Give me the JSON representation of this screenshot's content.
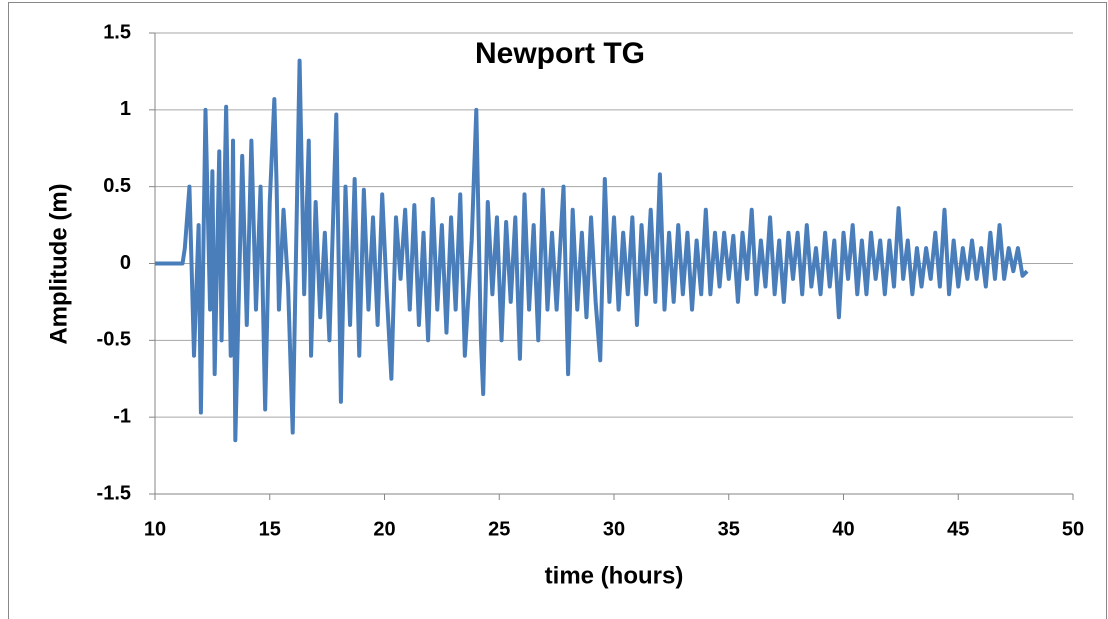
{
  "chart_data": {
    "type": "line",
    "title": "Newport TG",
    "x_label": "time (hours)",
    "y_label": "Amplitude (m)",
    "xlim": [
      10,
      50
    ],
    "xticks": [
      10,
      15,
      20,
      25,
      30,
      35,
      40,
      45,
      50
    ],
    "ylim": [
      -1.5,
      1.5
    ],
    "yticks": [
      -1.5,
      -1,
      -0.5,
      0,
      0.5,
      1,
      1.5
    ],
    "grid": true,
    "series": [
      {
        "name": "Newport TG",
        "color": "#4a7ebb",
        "x": [
          10,
          11.2,
          11.3,
          11.5,
          11.7,
          11.9,
          12.0,
          12.2,
          12.4,
          12.5,
          12.6,
          12.8,
          12.9,
          13.1,
          13.3,
          13.4,
          13.5,
          13.8,
          14.0,
          14.2,
          14.4,
          14.6,
          14.8,
          15.0,
          15.2,
          15.3,
          15.4,
          15.6,
          15.8,
          16.0,
          16.3,
          16.5,
          16.7,
          16.8,
          17.0,
          17.2,
          17.4,
          17.6,
          17.9,
          18.1,
          18.3,
          18.5,
          18.7,
          18.9,
          19.1,
          19.3,
          19.5,
          19.7,
          19.9,
          20.1,
          20.3,
          20.5,
          20.7,
          20.9,
          21.1,
          21.3,
          21.5,
          21.7,
          21.9,
          22.1,
          22.3,
          22.5,
          22.7,
          22.9,
          23.1,
          23.3,
          23.5,
          23.8,
          24.0,
          24.2,
          24.3,
          24.5,
          24.7,
          24.9,
          25.1,
          25.3,
          25.5,
          25.7,
          25.9,
          26.1,
          26.3,
          26.5,
          26.7,
          26.9,
          27.1,
          27.3,
          27.5,
          27.8,
          28.0,
          28.2,
          28.4,
          28.6,
          28.8,
          29.0,
          29.2,
          29.4,
          29.6,
          29.8,
          30.0,
          30.2,
          30.4,
          30.6,
          30.8,
          31.0,
          31.2,
          31.4,
          31.6,
          31.8,
          32.0,
          32.2,
          32.4,
          32.6,
          32.8,
          33.0,
          33.2,
          33.4,
          33.6,
          33.8,
          34.0,
          34.2,
          34.4,
          34.6,
          34.8,
          35.0,
          35.2,
          35.4,
          35.6,
          35.8,
          36.0,
          36.2,
          36.4,
          36.6,
          36.8,
          37.0,
          37.2,
          37.4,
          37.6,
          37.8,
          38.0,
          38.2,
          38.4,
          38.6,
          38.8,
          39.0,
          39.2,
          39.4,
          39.6,
          39.8,
          40.0,
          40.2,
          40.4,
          40.6,
          40.8,
          41.0,
          41.2,
          41.4,
          41.6,
          41.8,
          42.0,
          42.2,
          42.4,
          42.6,
          42.8,
          43.0,
          43.2,
          43.4,
          43.6,
          43.8,
          44.0,
          44.2,
          44.4,
          44.6,
          44.8,
          45.0,
          45.2,
          45.4,
          45.6,
          45.8,
          46.0,
          46.2,
          46.4,
          46.6,
          46.8,
          47.0,
          47.2,
          47.4,
          47.6,
          47.8,
          48.0
        ],
        "values": [
          0,
          0,
          0.1,
          0.5,
          -0.6,
          0.25,
          -0.97,
          1.0,
          -0.3,
          0.6,
          -0.72,
          0.73,
          -0.5,
          1.02,
          -0.6,
          0.8,
          -1.15,
          0.7,
          -0.4,
          0.8,
          -0.3,
          0.5,
          -0.95,
          0.4,
          1.07,
          0.5,
          -0.3,
          0.35,
          -0.15,
          -1.1,
          1.32,
          -0.2,
          0.8,
          -0.6,
          0.4,
          -0.35,
          0.2,
          -0.5,
          0.97,
          -0.9,
          0.5,
          -0.4,
          0.55,
          -0.6,
          0.48,
          -0.3,
          0.3,
          -0.4,
          0.45,
          -0.2,
          -0.75,
          0.3,
          -0.1,
          0.35,
          -0.3,
          0.38,
          -0.4,
          0.2,
          -0.5,
          0.42,
          -0.3,
          0.25,
          -0.45,
          0.3,
          -0.3,
          0.45,
          -0.6,
          0.15,
          1.0,
          -0.5,
          -0.85,
          0.4,
          -0.2,
          0.3,
          -0.5,
          0.27,
          -0.25,
          0.3,
          -0.62,
          0.45,
          -0.3,
          0.25,
          -0.5,
          0.48,
          -0.3,
          0.2,
          -0.3,
          0.5,
          -0.72,
          0.35,
          -0.3,
          0.2,
          -0.35,
          0.3,
          -0.25,
          -0.63,
          0.55,
          -0.25,
          0.3,
          -0.3,
          0.2,
          -0.2,
          0.3,
          -0.4,
          0.25,
          -0.2,
          0.35,
          -0.25,
          0.58,
          -0.3,
          0.2,
          -0.25,
          0.25,
          -0.2,
          0.2,
          -0.3,
          0.15,
          -0.2,
          0.35,
          -0.2,
          0.2,
          -0.15,
          0.2,
          -0.1,
          0.18,
          -0.25,
          0.2,
          -0.1,
          0.35,
          -0.2,
          0.15,
          -0.15,
          0.3,
          -0.2,
          0.15,
          -0.25,
          0.2,
          -0.1,
          0.2,
          -0.2,
          0.25,
          -0.15,
          0.1,
          -0.2,
          0.2,
          -0.15,
          0.15,
          -0.35,
          0.2,
          -0.1,
          0.25,
          -0.2,
          0.15,
          -0.2,
          0.2,
          -0.1,
          0.15,
          -0.2,
          0.15,
          -0.15,
          0.36,
          -0.1,
          0.15,
          -0.2,
          0.1,
          -0.15,
          0.1,
          -0.1,
          0.2,
          -0.15,
          0.35,
          -0.2,
          0.15,
          -0.15,
          0.1,
          -0.1,
          0.15,
          -0.1,
          0.1,
          -0.15,
          0.2,
          -0.1,
          0.25,
          -0.1,
          0.1,
          -0.05,
          0.1,
          -0.08,
          -0.05
        ]
      }
    ]
  }
}
